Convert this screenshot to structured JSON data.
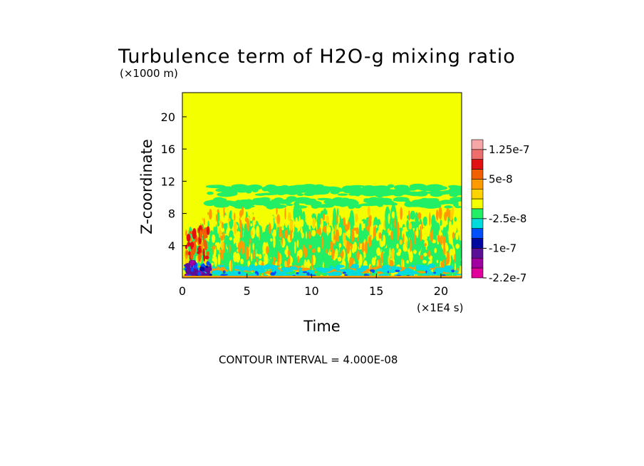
{
  "chart_data": {
    "type": "heatmap",
    "title": "Turbulence term of H2O-g mixing ratio",
    "ylabel": "Z-coordinate",
    "xlabel": "Time",
    "y_unit": "(×1000 m)",
    "x_unit": "(×1E4 s)",
    "xlim": [
      0,
      21.6
    ],
    "ylim": [
      0,
      23
    ],
    "xticks": [
      0,
      5,
      10,
      15,
      20
    ],
    "yticks": [
      4,
      8,
      12,
      16,
      20
    ],
    "background_level_color": "#f4ff00",
    "colorbar": {
      "levels": [
        "#f6a8a8",
        "#ee6d6d",
        "#e21010",
        "#f06000",
        "#ff9a00",
        "#ffd200",
        "#f4ff00",
        "#22ef66",
        "#00dcdc",
        "#0050ff",
        "#000aa0",
        "#5a0f96",
        "#a000a0",
        "#e0009a"
      ],
      "labels": [
        {
          "text": "1.25e-7",
          "level": 1
        },
        {
          "text": "5e-8",
          "level": 4
        },
        {
          "text": "-2.5e-8",
          "level": 8
        },
        {
          "text": "-1e-7",
          "level": 11
        },
        {
          "text": "-2.2e-7",
          "level": 14
        }
      ]
    },
    "features": [
      {
        "name": "green band",
        "x": [
          2,
          21.5
        ],
        "y": [
          10.3,
          11.3
        ],
        "color": "#22ef66"
      },
      {
        "name": "green band",
        "x": [
          2,
          21.5
        ],
        "y": [
          8.8,
          9.6
        ],
        "color": "#22ef66"
      },
      {
        "name": "green region",
        "x": [
          1,
          21.5
        ],
        "y": [
          0.4,
          8.8
        ],
        "color": "#22ef66"
      },
      {
        "name": "orange streaks",
        "x": [
          0.3,
          21.5
        ],
        "y": [
          0.5,
          8.5
        ],
        "color": "#ff9a00"
      },
      {
        "name": "red streaks",
        "x": [
          0.3,
          2
        ],
        "y": [
          2.5,
          6
        ],
        "color": "#e21010"
      },
      {
        "name": "cyan near-surface",
        "x": [
          0.2,
          21.5
        ],
        "y": [
          0,
          1.5
        ],
        "color": "#00dcdc"
      },
      {
        "name": "blue/purple core",
        "x": [
          0.2,
          2.2
        ],
        "y": [
          0,
          2
        ],
        "color": "#5a0f96"
      }
    ],
    "annotation": "CONTOUR INTERVAL = 4.000E-08"
  }
}
